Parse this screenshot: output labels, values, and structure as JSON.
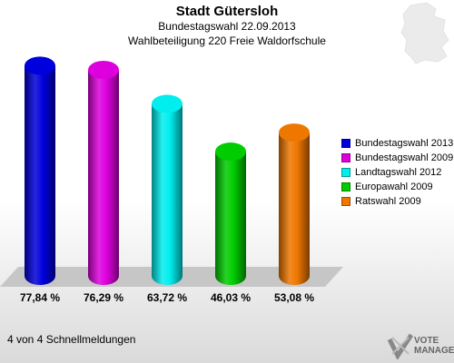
{
  "header": {
    "title": "Stadt Gütersloh",
    "subtitle": "Bundestagswahl 22.09.2013",
    "subtitle2": "Wahlbeteiligung 220 Freie Waldorfschule"
  },
  "chart_data": {
    "type": "bar",
    "categories": [
      "Bundestagswahl 2013",
      "Bundestagswahl 2009",
      "Landtagswahl 2012",
      "Europawahl 2009",
      "Ratswahl 2009"
    ],
    "values": [
      77.84,
      76.29,
      63.72,
      46.03,
      53.08
    ],
    "value_labels": [
      "77,84 %",
      "76,29 %",
      "63,72 %",
      "46,03 %",
      "53,08 %"
    ],
    "colors": [
      "#0000dd",
      "#dd00dd",
      "#00eeee",
      "#00cc00",
      "#ee7700"
    ],
    "legend_position": "right",
    "grid": false
  },
  "footer": {
    "text": "4 von 4 Schnellmeldungen"
  },
  "logo": {
    "line1": "VOTE",
    "line2": "MANAGER",
    "icon": "vote-manager-logo-icon"
  }
}
